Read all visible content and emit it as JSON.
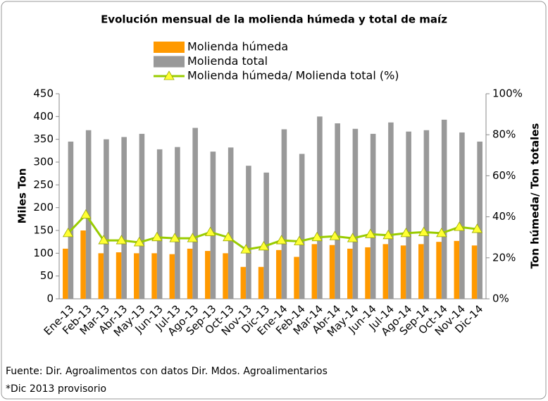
{
  "chart_data": {
    "type": "bar_line",
    "title": "Evolución mensual de la molienda húmeda y total de maíz",
    "categories": [
      "Ene-13",
      "Feb-13",
      "Mar-13",
      "Abr-13",
      "May-13",
      "Jun-13",
      "Jul-13",
      "Ago-13",
      "Sep-13",
      "Oct-13",
      "Nov-13",
      "Dic-13",
      "Ene-14",
      "Feb-14",
      "Mar-14",
      "Abr-14",
      "May-14",
      "Jun-14",
      "Jul-14",
      "Ago-14",
      "Sep-14",
      "Oct-14",
      "Nov-14",
      "Dic-14"
    ],
    "series": [
      {
        "name": "Molienda húmeda",
        "color": "#ff9900",
        "values": [
          110,
          150,
          100,
          102,
          100,
          100,
          98,
          110,
          105,
          100,
          70,
          70,
          107,
          92,
          120,
          118,
          110,
          113,
          120,
          117,
          120,
          125,
          127,
          117
        ]
      },
      {
        "name": "Molienda total",
        "color": "#999999",
        "values": [
          345,
          370,
          350,
          355,
          362,
          328,
          333,
          375,
          323,
          332,
          292,
          277,
          372,
          318,
          400,
          385,
          373,
          362,
          387,
          367,
          370,
          393,
          365,
          345
        ]
      },
      {
        "name": "Molienda húmeda/ Molienda total (%)",
        "color": "#99cc00",
        "marker_color": "#ffff33",
        "axis": "y2",
        "values": [
          32,
          41,
          28.5,
          28.5,
          27.5,
          30,
          29.5,
          29.5,
          32.5,
          30,
          24,
          25.5,
          28.5,
          28,
          30,
          30.5,
          29.5,
          31.5,
          31,
          32,
          32.5,
          32,
          35,
          34
        ]
      }
    ],
    "ylabel": "Miles Ton",
    "y2label": "Ton húmeda/ Ton totales",
    "ylim": [
      0,
      450
    ],
    "yticks": [
      0,
      50,
      100,
      150,
      200,
      250,
      300,
      350,
      400,
      450
    ],
    "y2lim": [
      0,
      100
    ],
    "y2ticks": [
      {
        "value": 0,
        "label": "0%"
      },
      {
        "value": 20,
        "label": "20%"
      },
      {
        "value": 40,
        "label": "40%"
      },
      {
        "value": 60,
        "label": "60%"
      },
      {
        "value": 80,
        "label": "80%"
      },
      {
        "value": 100,
        "label": "100%"
      }
    ],
    "grid": false,
    "notes": [
      "Fuente: Dir. Agroalimentos con datos Dir. Mdos. Agroalimentarios",
      "*Dic 2013 provisorio"
    ]
  }
}
